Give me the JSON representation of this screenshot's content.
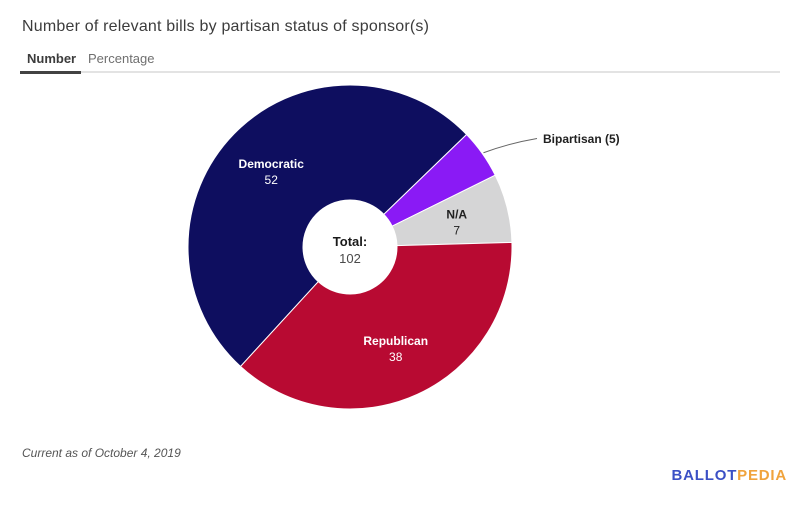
{
  "header": {
    "title": "Number of relevant bills by partisan status of sponsor(s)"
  },
  "tabs": [
    {
      "label": "Number",
      "active": true
    },
    {
      "label": "Percentage",
      "active": false
    }
  ],
  "chart_data": {
    "type": "pie",
    "subtype": "donut",
    "title": "Number of relevant bills by partisan status of sponsor(s)",
    "view": "Number",
    "total_label": "Total:",
    "total_value": "102",
    "start_angle_deg": 222.5,
    "legend_position": "none",
    "slices": [
      {
        "label": "Democratic",
        "value": 52,
        "color": "#0e0e5f",
        "label_inside": true,
        "text_color": "#ffffff"
      },
      {
        "label": "Bipartisan",
        "value": 5,
        "color": "#8a1af5",
        "label_inside": false,
        "callout_label": "Bipartisan (5)",
        "text_color": "#212121"
      },
      {
        "label": "N/A",
        "value": 7,
        "color": "#d5d5d6",
        "label_inside": true,
        "text_color": "#212121"
      },
      {
        "label": "Republican",
        "value": 38,
        "color": "#b80a32",
        "label_inside": true,
        "text_color": "#ffffff"
      }
    ]
  },
  "footer": {
    "note": "Current as of October 4, 2019"
  },
  "logo": {
    "part1": "BALLOT",
    "part2": "PEDIA",
    "color1": "#3b50c5",
    "color2": "#f0a33c"
  }
}
